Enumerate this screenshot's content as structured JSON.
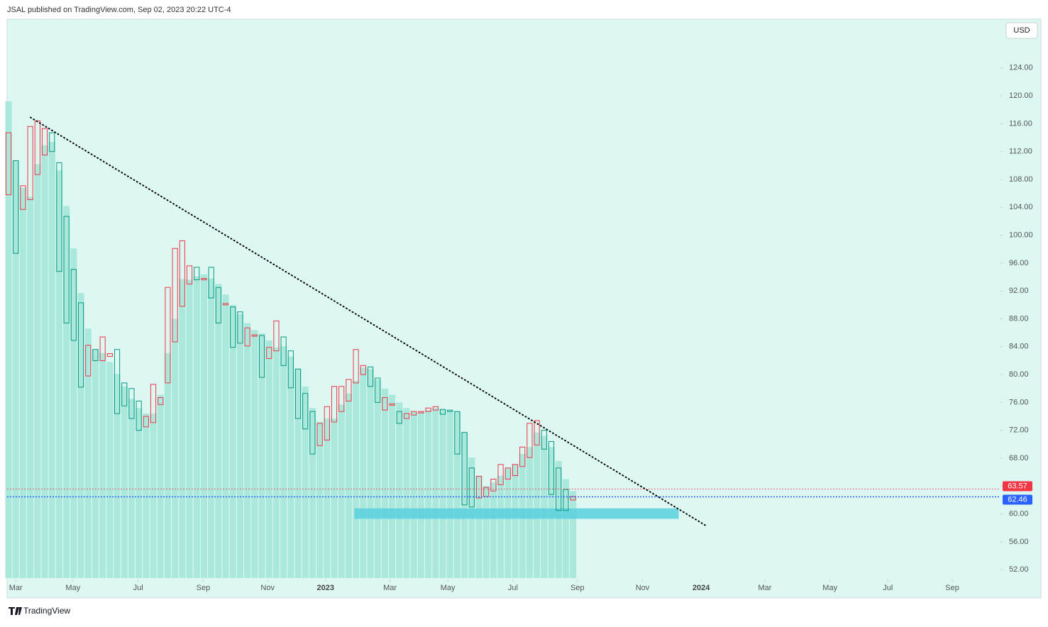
{
  "header": {
    "title": "JSAL published on TradingView.com, Sep 02, 2023 20:22 UTC-4"
  },
  "footer": {
    "brand": "TradingView"
  },
  "chart_data": {
    "type": "candlestick",
    "currency": "USD",
    "up_color": "#f23645",
    "down_color": "#089981",
    "column_color": "#aae8dc",
    "background": "#ddf8f3",
    "open": [
      105.8,
      110.7,
      103.7,
      105.1,
      108.7,
      111.5,
      114.7,
      110.4,
      102.7,
      95.1,
      90.3,
      79.8,
      83.6,
      82.0,
      82.6,
      83.6,
      78.8,
      78.0,
      76.2,
      72.5,
      73.1,
      75.7,
      78.8,
      84.7,
      89.8,
      93.0,
      95.4,
      93.6,
      95.4,
      92.5,
      90.0,
      89.7,
      89.0,
      84.1,
      85.5,
      85.6,
      82.3,
      83.4,
      85.4,
      83.4,
      80.8,
      77.3,
      74.7,
      69.8,
      70.6,
      73.2,
      74.7,
      76.2,
      78.8,
      80.0,
      81.1,
      79.5,
      74.9,
      75.6,
      74.7,
      73.7,
      74.2,
      74.5,
      74.7,
      74.9,
      75.0,
      74.9,
      74.7,
      71.7,
      66.6,
      62.3,
      62.5,
      63.3,
      64.2,
      65.0,
      65.5,
      66.8,
      68.1,
      69.9,
      72.0,
      70.4,
      66.6,
      63.5,
      62.0
    ],
    "close": [
      114.7,
      97.4,
      107.1,
      115.6,
      116.4,
      115.3,
      112.0,
      94.8,
      87.4,
      84.9,
      78.2,
      84.2,
      82.0,
      85.4,
      83.0,
      74.4,
      75.5,
      73.7,
      72.0,
      74.0,
      78.6,
      76.7,
      92.5,
      98.1,
      99.2,
      95.6,
      93.6,
      93.8,
      91.0,
      87.4,
      90.2,
      83.9,
      84.5,
      86.7,
      85.7,
      79.6,
      83.9,
      87.7,
      81.3,
      78.1,
      73.7,
      72.2,
      68.6,
      73.0,
      75.4,
      78.3,
      78.3,
      79.3,
      83.6,
      81.3,
      78.3,
      76.0,
      76.7,
      75.8,
      73.0,
      74.4,
      74.7,
      74.7,
      75.2,
      75.4,
      74.3,
      74.7,
      68.6,
      61.3,
      61.0,
      65.4,
      63.8,
      65.0,
      67.1,
      66.6,
      67.1,
      69.6,
      73.0,
      73.4,
      69.3,
      62.8,
      60.5,
      60.5,
      62.5
    ],
    "columns": [
      119.2,
      110.7,
      106.8,
      105.5,
      110.2,
      112.9,
      113.4,
      109.3,
      104.2,
      98.1,
      91.7,
      86.6,
      83.6,
      83.1,
      81.8,
      80.1,
      78.3,
      76.5,
      75.2,
      74.4,
      74.4,
      77.1,
      83.1,
      88.0,
      93.7,
      93.6,
      94.1,
      94.4,
      93.8,
      93.0,
      91.5,
      90.0,
      88.7,
      87.4,
      86.4,
      85.9,
      84.9,
      83.9,
      84.1,
      82.6,
      80.8,
      78.3,
      75.2,
      73.2,
      73.7,
      73.7,
      75.7,
      77.3,
      79.1,
      81.0,
      80.8,
      79.3,
      78.0,
      77.1,
      76.0,
      75.2,
      74.7,
      74.7,
      74.9,
      75.2,
      75.0,
      74.8,
      74.7,
      71.7,
      68.1,
      65.5,
      64.0,
      64.5,
      65.5,
      66.6,
      67.1,
      68.6,
      69.6,
      71.7,
      71.2,
      69.6,
      67.6,
      65.0,
      63.3
    ],
    "xlim": [
      -0.2,
      137.06
    ],
    "ylim": [
      50.8,
      130.9
    ],
    "xticks": [
      {
        "value": 1.0,
        "label": "Mar"
      },
      {
        "value": 8.9,
        "label": "May"
      },
      {
        "value": 17.9,
        "label": "Jul"
      },
      {
        "value": 26.9,
        "label": "Sep"
      },
      {
        "value": 35.8,
        "label": "Nov"
      },
      {
        "value": 43.8,
        "label": "2023"
      },
      {
        "value": 52.7,
        "label": "Mar"
      },
      {
        "value": 60.7,
        "label": "May"
      },
      {
        "value": 69.7,
        "label": "Jul"
      },
      {
        "value": 78.6,
        "label": "Sep"
      },
      {
        "value": 87.6,
        "label": "Nov"
      },
      {
        "value": 95.7,
        "label": "2024"
      },
      {
        "value": 104.5,
        "label": "Mar"
      },
      {
        "value": 113.5,
        "label": "May"
      },
      {
        "value": 121.5,
        "label": "Jul"
      },
      {
        "value": 130.4,
        "label": "Sep"
      }
    ],
    "yticks": [
      {
        "value": 52,
        "label": "52.00"
      },
      {
        "value": 56,
        "label": "56.00"
      },
      {
        "value": 60,
        "label": "60.00"
      },
      {
        "value": 64,
        "label": "64.00"
      },
      {
        "value": 68,
        "label": "68.00"
      },
      {
        "value": 72,
        "label": "72.00"
      },
      {
        "value": 76,
        "label": "76.00"
      },
      {
        "value": 80,
        "label": "80.00"
      },
      {
        "value": 84,
        "label": "84.00"
      },
      {
        "value": 88,
        "label": "88.00"
      },
      {
        "value": 92,
        "label": "92.00"
      },
      {
        "value": 96,
        "label": "96.00"
      },
      {
        "value": 100,
        "label": "100.00"
      },
      {
        "value": 104,
        "label": "104.00"
      },
      {
        "value": 108,
        "label": "108.00"
      },
      {
        "value": 112,
        "label": "112.00"
      },
      {
        "value": 116,
        "label": "116.00"
      },
      {
        "value": 120,
        "label": "120.00"
      },
      {
        "value": 124,
        "label": "124.00"
      }
    ],
    "trendline": {
      "x": [
        3.04,
        96.4
      ],
      "y": [
        116.9,
        58.3
      ],
      "color": "#000000"
    },
    "zone": {
      "x": [
        47.8,
        92.6
      ],
      "y": [
        59.3,
        60.8
      ],
      "color": "#5bd0de"
    },
    "price_lines": [
      {
        "value": 63.57,
        "color": "#f23645"
      },
      {
        "value": 62.46,
        "color": "#2962ff"
      }
    ]
  }
}
